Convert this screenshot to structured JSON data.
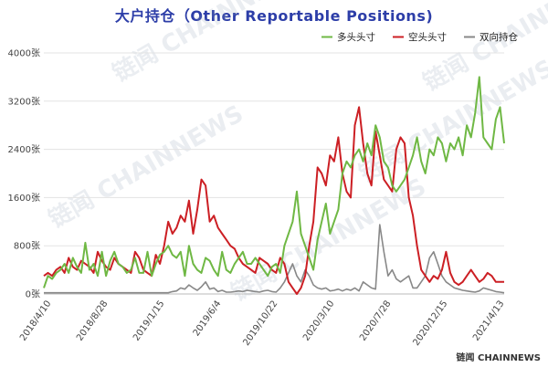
{
  "chart_data": {
    "type": "line",
    "title": "大户持仓（Other Reportable Positions)",
    "xlabel": "",
    "ylabel": "",
    "ylim": [
      0,
      4000
    ],
    "yticks": [
      "0张",
      "800张",
      "1600张",
      "2400张",
      "3200张",
      "4000张"
    ],
    "yticks_values": [
      0,
      800,
      1600,
      2400,
      3200,
      4000
    ],
    "xticks": [
      "2018/4/10",
      "2018/8/28",
      "2019/1/15",
      "2019/6/4",
      "2019/10/22",
      "2020/3/10",
      "2020/7/28",
      "2020/12/15",
      "2021/4/13"
    ],
    "grid": "horizontal",
    "legend_position": "top-right",
    "series": [
      {
        "name": "多头头寸",
        "color": "#6fb844",
        "values": [
          100,
          300,
          250,
          350,
          400,
          500,
          350,
          600,
          450,
          350,
          850,
          400,
          500,
          300,
          700,
          300,
          550,
          700,
          500,
          450,
          350,
          400,
          600,
          350,
          350,
          700,
          300,
          500,
          650,
          700,
          800,
          650,
          600,
          700,
          300,
          800,
          500,
          400,
          350,
          600,
          550,
          400,
          300,
          700,
          400,
          350,
          500,
          600,
          700,
          500,
          500,
          600,
          500,
          400,
          300,
          450,
          500,
          350,
          800,
          1000,
          1200,
          1700,
          1000,
          800,
          600,
          400,
          900,
          1200,
          1500,
          1000,
          1200,
          1400,
          2000,
          2200,
          2100,
          2300,
          2400,
          2200,
          2500,
          2300,
          2800,
          2600,
          2200,
          2100,
          1800,
          1700,
          1800,
          1900,
          2100,
          2300,
          2600,
          2200,
          2000,
          2400,
          2300,
          2600,
          2500,
          2200,
          2500,
          2400,
          2600,
          2300,
          2800,
          2600,
          3000,
          3600,
          2600,
          2500,
          2400,
          2900,
          3100,
          2500
        ]
      },
      {
        "name": "空头头寸",
        "color": "#cc1f24",
        "values": [
          300,
          350,
          300,
          400,
          450,
          350,
          600,
          450,
          400,
          550,
          500,
          450,
          350,
          700,
          550,
          450,
          400,
          600,
          500,
          450,
          400,
          350,
          700,
          600,
          400,
          350,
          300,
          650,
          500,
          800,
          1200,
          1000,
          1100,
          1300,
          1200,
          1550,
          1000,
          1400,
          1900,
          1800,
          1200,
          1300,
          1100,
          1000,
          900,
          800,
          750,
          600,
          500,
          450,
          400,
          350,
          600,
          550,
          500,
          400,
          350,
          600,
          500,
          200,
          100,
          0,
          100,
          300,
          800,
          1200,
          2100,
          2000,
          1800,
          2300,
          2200,
          2600,
          2000,
          1700,
          1600,
          2800,
          3100,
          2500,
          2000,
          1800,
          2700,
          2300,
          1900,
          1800,
          1700,
          2400,
          2600,
          2500,
          1600,
          1300,
          800,
          400,
          300,
          200,
          300,
          250,
          400,
          700,
          350,
          200,
          150,
          200,
          300,
          400,
          300,
          200,
          250,
          350,
          300,
          200,
          200,
          200
        ]
      },
      {
        "name": "双向持仓",
        "color": "#888888",
        "values": [
          20,
          20,
          20,
          20,
          20,
          20,
          20,
          20,
          20,
          20,
          20,
          20,
          20,
          20,
          20,
          20,
          20,
          20,
          20,
          20,
          20,
          20,
          20,
          20,
          20,
          20,
          20,
          20,
          20,
          20,
          20,
          40,
          50,
          100,
          80,
          150,
          100,
          60,
          120,
          200,
          80,
          100,
          40,
          60,
          30,
          30,
          40,
          50,
          40,
          60,
          50,
          40,
          30,
          50,
          60,
          40,
          30,
          100,
          200,
          350,
          500,
          300,
          200,
          400,
          300,
          150,
          100,
          80,
          100,
          50,
          60,
          80,
          50,
          80,
          60,
          100,
          50,
          200,
          150,
          100,
          80,
          1150,
          700,
          300,
          400,
          250,
          200,
          250,
          300,
          100,
          100,
          200,
          300,
          600,
          700,
          500,
          300,
          200,
          150,
          100,
          80,
          60,
          50,
          40,
          30,
          50,
          100,
          80,
          60,
          40,
          30,
          20
        ]
      }
    ]
  },
  "watermark": "链闻 CHAINNEWS",
  "footer_logo_text": "链闻 CHAINNEWS"
}
